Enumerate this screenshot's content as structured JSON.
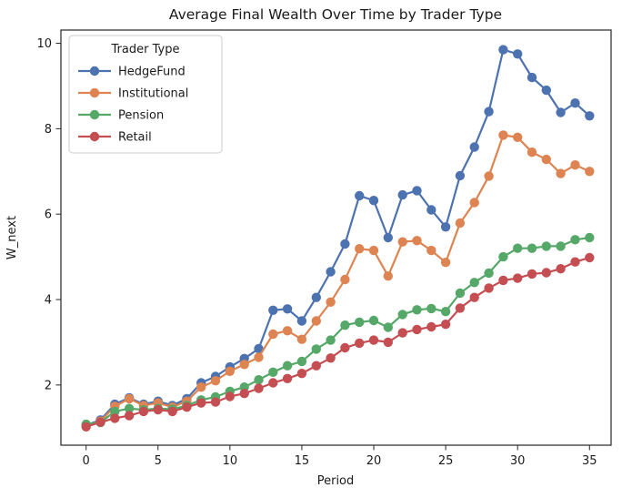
{
  "figure": {
    "title": "Average Final Wealth Over Time by Trader Type",
    "xlabel": "Period",
    "ylabel": "W_next"
  },
  "legend": {
    "title": "Trader Type",
    "position": "upper left",
    "entries": [
      {
        "label": "HedgeFund",
        "color": "#4C72B0"
      },
      {
        "label": "Institutional",
        "color": "#DD8452"
      },
      {
        "label": "Pension",
        "color": "#55A868"
      },
      {
        "label": "Retail",
        "color": "#C44E52"
      }
    ]
  },
  "chart_data": {
    "type": "line",
    "title": "Average Final Wealth Over Time by Trader Type",
    "xlabel": "Period",
    "ylabel": "W_next",
    "grid": false,
    "marker": "o",
    "legend_position": "upper left",
    "legend_title": "Trader Type",
    "xticks": [
      0,
      5,
      10,
      15,
      20,
      25,
      30,
      35
    ],
    "yticks": [
      2,
      4,
      6,
      8,
      10
    ],
    "xlim": [
      -1.75,
      36.5
    ],
    "ylim": [
      0.59,
      10.31
    ],
    "x": [
      0,
      1,
      2,
      3,
      4,
      5,
      6,
      7,
      8,
      9,
      10,
      11,
      12,
      13,
      14,
      15,
      16,
      17,
      18,
      19,
      20,
      21,
      22,
      23,
      24,
      25,
      26,
      27,
      28,
      29,
      30,
      31,
      32,
      33,
      34,
      35
    ],
    "series": [
      {
        "name": "HedgeFund",
        "color": "#4C72B0",
        "values": [
          1.06,
          1.18,
          1.55,
          1.7,
          1.55,
          1.62,
          1.52,
          1.68,
          2.05,
          2.2,
          2.42,
          2.62,
          2.85,
          3.75,
          3.78,
          3.5,
          4.05,
          4.65,
          5.3,
          6.43,
          6.32,
          5.45,
          6.45,
          6.55,
          6.1,
          5.7,
          6.9,
          7.57,
          8.4,
          9.85,
          9.75,
          9.2,
          8.9,
          8.38,
          8.6,
          8.3
        ]
      },
      {
        "name": "Institutional",
        "color": "#DD8452",
        "values": [
          1.05,
          1.15,
          1.5,
          1.68,
          1.52,
          1.58,
          1.48,
          1.62,
          1.95,
          2.1,
          2.32,
          2.48,
          2.65,
          3.19,
          3.27,
          3.07,
          3.5,
          3.94,
          4.47,
          5.19,
          5.15,
          4.55,
          5.35,
          5.38,
          5.15,
          4.87,
          5.79,
          6.27,
          6.89,
          7.85,
          7.8,
          7.45,
          7.28,
          6.95,
          7.15,
          7.0
        ]
      },
      {
        "name": "Pension",
        "color": "#55A868",
        "values": [
          1.08,
          1.12,
          1.38,
          1.45,
          1.42,
          1.45,
          1.43,
          1.52,
          1.65,
          1.72,
          1.85,
          1.95,
          2.12,
          2.3,
          2.45,
          2.55,
          2.84,
          3.05,
          3.4,
          3.47,
          3.51,
          3.35,
          3.65,
          3.76,
          3.79,
          3.72,
          4.15,
          4.4,
          4.62,
          5.0,
          5.2,
          5.2,
          5.25,
          5.25,
          5.4,
          5.45
        ]
      },
      {
        "name": "Retail",
        "color": "#C44E52",
        "values": [
          1.02,
          1.13,
          1.22,
          1.28,
          1.38,
          1.42,
          1.38,
          1.48,
          1.58,
          1.6,
          1.73,
          1.8,
          1.92,
          2.05,
          2.15,
          2.27,
          2.45,
          2.63,
          2.87,
          2.98,
          3.05,
          3.0,
          3.22,
          3.3,
          3.36,
          3.42,
          3.8,
          4.05,
          4.27,
          4.45,
          4.5,
          4.6,
          4.63,
          4.72,
          4.88,
          4.98
        ]
      }
    ]
  },
  "style": {
    "spine_color": "#262626",
    "tick_color": "#262626",
    "legend_border": "#cccccc",
    "background": "#ffffff"
  }
}
